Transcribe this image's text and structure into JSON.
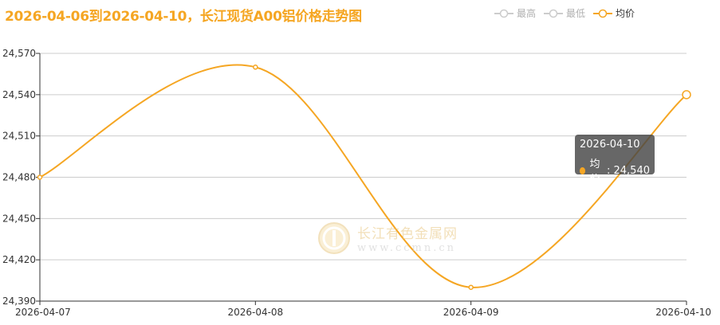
{
  "title": "2026-04-06到2026-04-10，长江现货A00铝价格走势图",
  "legend": [
    {
      "label": "最高",
      "color": "#cccccc",
      "active": false
    },
    {
      "label": "最低",
      "color": "#cccccc",
      "active": false
    },
    {
      "label": "均价",
      "color": "#f5a623",
      "active": true
    }
  ],
  "tooltip": {
    "date": "2026-04-10",
    "series": "均价",
    "value": "24,540"
  },
  "watermark": {
    "name": "长江有色金属网",
    "url": "www.ccmn.cn"
  },
  "colors": {
    "accent": "#f5a623",
    "grid": "#cccccc",
    "axis": "#333333"
  },
  "chart_data": {
    "type": "line",
    "title": "2026-04-06到2026-04-10，长江现货A00铝价格走势图",
    "x": [
      "2026-04-07",
      "2026-04-08",
      "2026-04-09",
      "2026-04-10"
    ],
    "series": [
      {
        "name": "均价",
        "values": [
          24480,
          24560,
          24400,
          24540
        ]
      }
    ],
    "ylim": [
      24390,
      24570
    ],
    "yticks": [
      24390,
      24420,
      24450,
      24480,
      24510,
      24540,
      24570
    ],
    "ytick_labels": [
      "24,390",
      "24,420",
      "24,450",
      "24,480",
      "24,510",
      "24,540",
      "24,570"
    ],
    "grid": true,
    "legend_position": "top-right"
  }
}
